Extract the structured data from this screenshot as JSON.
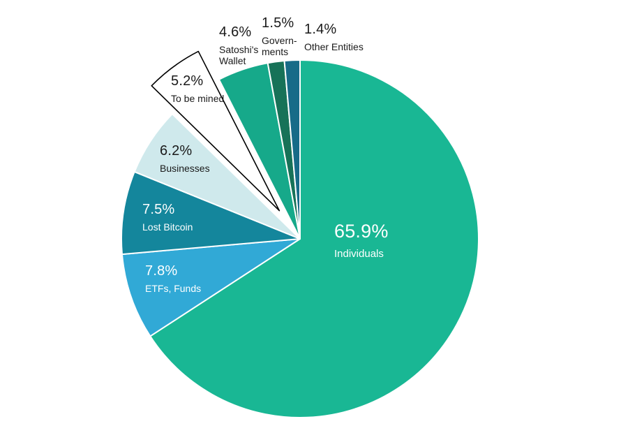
{
  "chart_data": {
    "type": "pie",
    "title": "",
    "direction": "clockwise",
    "start_angle_deg": 0,
    "background": "#ffffff",
    "slices": [
      {
        "label": "Individuals",
        "value": 65.9,
        "percent_label": "65.9%",
        "color": "#19b794",
        "text_color": "#ffffff",
        "exploded": false,
        "label_lines": [
          "Individuals"
        ]
      },
      {
        "label": "ETFs, Funds",
        "value": 7.8,
        "percent_label": "7.8%",
        "color": "#31a9d6",
        "text_color": "#ffffff",
        "exploded": false,
        "label_lines": [
          "ETFs, Funds"
        ]
      },
      {
        "label": "Lost Bitcoin",
        "value": 7.5,
        "percent_label": "7.5%",
        "color": "#14869c",
        "text_color": "#ffffff",
        "exploded": false,
        "label_lines": [
          "Lost Bitcoin"
        ]
      },
      {
        "label": "Businesses",
        "value": 6.2,
        "percent_label": "6.2%",
        "color": "#cfe9ec",
        "text_color": "#1a1a1a",
        "exploded": false,
        "label_lines": [
          "Businesses"
        ]
      },
      {
        "label": "To be mined",
        "value": 5.2,
        "percent_label": "5.2%",
        "color": "#ffffff",
        "stroke": "#000000",
        "text_color": "#1a1a1a",
        "exploded": true,
        "label_lines": [
          "To be mined"
        ]
      },
      {
        "label": "Satoshi's Wallet",
        "value": 4.6,
        "percent_label": "4.6%",
        "color": "#16a98a",
        "text_color": "#1a1a1a",
        "exploded": false,
        "label_lines": [
          "Satoshi's",
          "Wallet"
        ]
      },
      {
        "label": "Governments",
        "value": 1.5,
        "percent_label": "1.5%",
        "color": "#177258",
        "text_color": "#1a1a1a",
        "exploded": false,
        "label_lines": [
          "Govern-",
          "ments"
        ]
      },
      {
        "label": "Other Entities",
        "value": 1.4,
        "percent_label": "1.4%",
        "color": "#176b88",
        "text_color": "#1a1a1a",
        "exploded": false,
        "label_lines": [
          "Other Entities"
        ]
      }
    ]
  }
}
